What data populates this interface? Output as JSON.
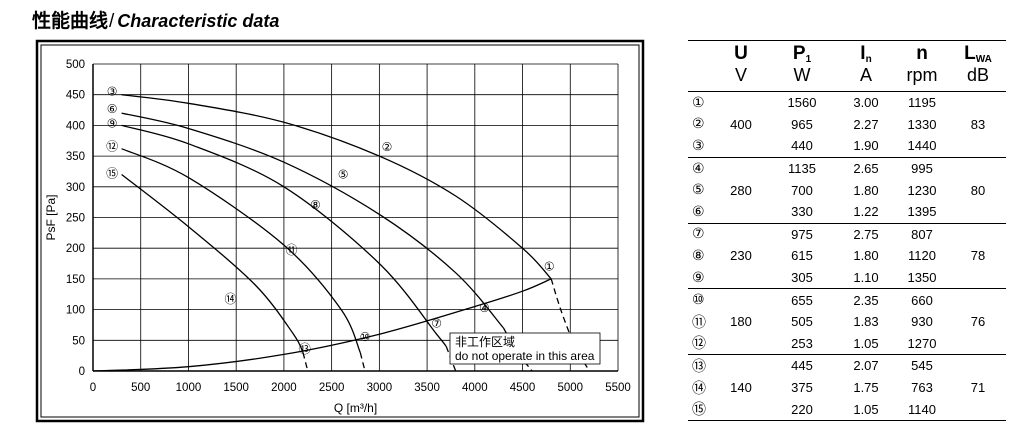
{
  "heading": {
    "zh": "性能曲线",
    "separator": "/",
    "en": "Characteristic data"
  },
  "chart_data": {
    "type": "line",
    "xlabel": "Q [m³/h]",
    "ylabel": "PsF [Pa]",
    "xlim": [
      0,
      5500
    ],
    "ylim": [
      0,
      500
    ],
    "xticks": [
      0,
      500,
      1000,
      1500,
      2000,
      2500,
      3000,
      3500,
      4000,
      4500,
      5000,
      5500
    ],
    "yticks": [
      0,
      50,
      100,
      150,
      200,
      250,
      300,
      350,
      400,
      450,
      500
    ],
    "grid": true,
    "series": [
      {
        "name": "③",
        "x": [
          300,
          1000,
          2000,
          3000,
          3800,
          4500,
          4800
        ],
        "y": [
          450,
          436,
          405,
          350,
          285,
          200,
          150
        ]
      },
      {
        "name": "②",
        "x": [
          4800,
          4900,
          5050,
          5200
        ],
        "y": [
          150,
          100,
          40,
          0
        ]
      },
      {
        "name": "⑥",
        "x": [
          300,
          1000,
          2000,
          3000,
          3800,
          4300
        ],
        "y": [
          420,
          395,
          340,
          255,
          160,
          70
        ]
      },
      {
        "name": "⑤",
        "x": [
          4300,
          4450,
          4600
        ],
        "y": [
          70,
          30,
          0
        ]
      },
      {
        "name": "⑨",
        "x": [
          300,
          1000,
          2000,
          3000,
          3600,
          3700
        ],
        "y": [
          400,
          370,
          300,
          175,
          60,
          40
        ]
      },
      {
        "name": "⑧",
        "x": [
          3700,
          3750,
          3800
        ],
        "y": [
          40,
          20,
          0
        ]
      },
      {
        "name": "⑫",
        "x": [
          300,
          1000,
          2000,
          2600,
          2800
        ],
        "y": [
          362,
          315,
          205,
          100,
          30
        ]
      },
      {
        "name": "⑪",
        "x": [
          2800,
          2850
        ],
        "y": [
          30,
          0
        ]
      },
      {
        "name": "⑮",
        "x": [
          300,
          1000,
          1700,
          2100,
          2200
        ],
        "y": [
          320,
          235,
          140,
          60,
          30
        ]
      },
      {
        "name": "⑭",
        "x": [
          2200,
          2250
        ],
        "y": [
          30,
          0
        ]
      },
      {
        "name": "limit",
        "x": [
          0,
          1000,
          2000,
          3000,
          4000,
          4500,
          4800
        ],
        "y": [
          0,
          7,
          27,
          60,
          105,
          130,
          150
        ]
      }
    ],
    "curve_labels": [
      {
        "label": "③",
        "x": 200,
        "y": 455
      },
      {
        "label": "②",
        "x": 3080,
        "y": 365
      },
      {
        "label": "⑥",
        "x": 200,
        "y": 427
      },
      {
        "label": "⑤",
        "x": 2620,
        "y": 320
      },
      {
        "label": "⑨",
        "x": 200,
        "y": 403
      },
      {
        "label": "⑧",
        "x": 2330,
        "y": 270
      },
      {
        "label": "⑫",
        "x": 200,
        "y": 366
      },
      {
        "label": "⑪",
        "x": 2080,
        "y": 197
      },
      {
        "label": "⑮",
        "x": 200,
        "y": 322
      },
      {
        "label": "⑭",
        "x": 1440,
        "y": 117
      },
      {
        "label": "①",
        "x": 4780,
        "y": 170
      },
      {
        "label": "④",
        "x": 4100,
        "y": 103
      },
      {
        "label": "⑦",
        "x": 3600,
        "y": 77
      },
      {
        "label": "⑩",
        "x": 2850,
        "y": 55
      },
      {
        "label": "⑬",
        "x": 2220,
        "y": 36
      }
    ],
    "area_note": [
      "非工作区域",
      "do not operate in this area"
    ]
  },
  "table": {
    "symbols": [
      "U",
      "P",
      "I",
      "n",
      "L"
    ],
    "subscripts": [
      "",
      "1",
      "n",
      "",
      "WA"
    ],
    "units": [
      "V",
      "W",
      "A",
      "rpm",
      "dB"
    ],
    "rows": [
      {
        "idx": "①",
        "u": "",
        "p": "1560",
        "i": "3.00",
        "n": "1195",
        "l": ""
      },
      {
        "idx": "②",
        "u": "400",
        "p": "965",
        "i": "2.27",
        "n": "1330",
        "l": "83"
      },
      {
        "idx": "③",
        "u": "",
        "p": "440",
        "i": "1.90",
        "n": "1440",
        "l": ""
      },
      {
        "idx": "④",
        "u": "",
        "p": "1135",
        "i": "2.65",
        "n": "995",
        "l": ""
      },
      {
        "idx": "⑤",
        "u": "280",
        "p": "700",
        "i": "1.80",
        "n": "1230",
        "l": "80"
      },
      {
        "idx": "⑥",
        "u": "",
        "p": "330",
        "i": "1.22",
        "n": "1395",
        "l": ""
      },
      {
        "idx": "⑦",
        "u": "",
        "p": "975",
        "i": "2.75",
        "n": "807",
        "l": ""
      },
      {
        "idx": "⑧",
        "u": "230",
        "p": "615",
        "i": "1.80",
        "n": "1120",
        "l": "78"
      },
      {
        "idx": "⑨",
        "u": "",
        "p": "305",
        "i": "1.10",
        "n": "1350",
        "l": ""
      },
      {
        "idx": "⑩",
        "u": "",
        "p": "655",
        "i": "2.35",
        "n": "660",
        "l": ""
      },
      {
        "idx": "⑪",
        "u": "180",
        "p": "505",
        "i": "1.83",
        "n": "930",
        "l": "76"
      },
      {
        "idx": "⑫",
        "u": "",
        "p": "253",
        "i": "1.05",
        "n": "1270",
        "l": ""
      },
      {
        "idx": "⑬",
        "u": "",
        "p": "445",
        "i": "2.07",
        "n": "545",
        "l": ""
      },
      {
        "idx": "⑭",
        "u": "140",
        "p": "375",
        "i": "1.75",
        "n": "763",
        "l": "71"
      },
      {
        "idx": "⑮",
        "u": "",
        "p": "220",
        "i": "1.05",
        "n": "1140",
        "l": ""
      }
    ]
  }
}
